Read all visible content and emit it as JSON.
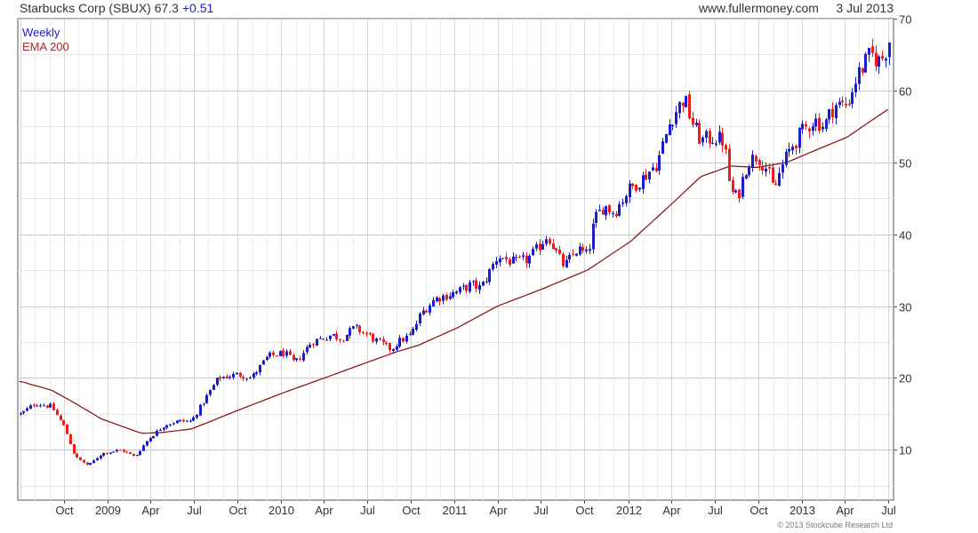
{
  "header": {
    "title": "Starbucks Corp (SBUX)",
    "price": "67.3",
    "change": "+0.51",
    "site": "www.fullermoney.com",
    "date": "3 Jul 2013"
  },
  "legend": {
    "series1": "Weekly",
    "series2": "EMA 200"
  },
  "copyright": "© 2013 Stockcube Research Ltd",
  "colors": {
    "up": "#1c1ccc",
    "down": "#ee1c1c",
    "ema": "#8b1a1a",
    "grid": "#d3d3d3"
  },
  "chart_data": {
    "type": "line",
    "title": "Starbucks Corp (SBUX)",
    "ylim": [
      3,
      70
    ],
    "yticks": [
      10,
      20,
      30,
      40,
      50,
      60,
      70
    ],
    "x_tick_labels": [
      "Oct",
      "2009",
      "Apr",
      "Jul",
      "Oct",
      "2010",
      "Apr",
      "Jul",
      "Oct",
      "2011",
      "Apr",
      "Jul",
      "Oct",
      "2012",
      "Apr",
      "Jul",
      "Oct",
      "2013",
      "Apr",
      "Jul"
    ],
    "grid": true,
    "legend_position": "top-left",
    "weekly_close_anchors": [
      [
        "2008-07-03",
        15
      ],
      [
        "2008-08-01",
        16.5
      ],
      [
        "2008-09-05",
        16
      ],
      [
        "2008-10-03",
        13
      ],
      [
        "2008-10-24",
        9
      ],
      [
        "2008-11-21",
        7.8
      ],
      [
        "2008-12-19",
        9.5
      ],
      [
        "2009-01-30",
        10
      ],
      [
        "2009-02-27",
        9
      ],
      [
        "2009-03-27",
        11.5
      ],
      [
        "2009-05-01",
        13.5
      ],
      [
        "2009-05-29",
        14
      ],
      [
        "2009-06-26",
        14
      ],
      [
        "2009-07-24",
        17
      ],
      [
        "2009-08-21",
        20
      ],
      [
        "2009-10-02",
        20.5
      ],
      [
        "2009-10-30",
        20
      ],
      [
        "2009-12-04",
        23
      ],
      [
        "2010-01-08",
        23.5
      ],
      [
        "2010-01-29",
        22
      ],
      [
        "2010-03-05",
        25
      ],
      [
        "2010-04-16",
        26
      ],
      [
        "2010-05-07",
        25.5
      ],
      [
        "2010-06-04",
        27
      ],
      [
        "2010-07-02",
        26
      ],
      [
        "2010-07-23",
        25
      ],
      [
        "2010-08-20",
        24
      ],
      [
        "2010-09-03",
        25
      ],
      [
        "2010-10-01",
        26
      ],
      [
        "2010-10-22",
        29
      ],
      [
        "2010-11-19",
        31
      ],
      [
        "2011-01-07",
        32
      ],
      [
        "2011-02-04",
        33
      ],
      [
        "2011-02-25",
        32.5
      ],
      [
        "2011-04-01",
        37
      ],
      [
        "2011-05-06",
        36
      ],
      [
        "2011-06-03",
        36.5
      ],
      [
        "2011-06-24",
        38
      ],
      [
        "2011-07-15",
        40
      ],
      [
        "2011-08-05",
        37
      ],
      [
        "2011-08-19",
        35.5
      ],
      [
        "2011-09-16",
        38
      ],
      [
        "2011-10-07",
        37
      ],
      [
        "2011-10-21",
        42
      ],
      [
        "2011-11-11",
        44
      ],
      [
        "2011-12-02",
        43
      ],
      [
        "2011-12-30",
        46
      ],
      [
        "2012-02-03",
        48
      ],
      [
        "2012-03-02",
        50
      ],
      [
        "2012-03-30",
        56
      ],
      [
        "2012-04-27",
        59
      ],
      [
        "2012-05-11",
        56
      ],
      [
        "2012-06-01",
        53
      ],
      [
        "2012-06-29",
        53.5
      ],
      [
        "2012-07-20",
        53
      ],
      [
        "2012-08-03",
        46
      ],
      [
        "2012-08-17",
        45
      ],
      [
        "2012-09-07",
        50
      ],
      [
        "2012-09-28",
        51
      ],
      [
        "2012-10-19",
        49
      ],
      [
        "2012-11-02",
        46
      ],
      [
        "2012-11-16",
        49
      ],
      [
        "2012-12-07",
        52
      ],
      [
        "2012-12-28",
        54
      ],
      [
        "2013-01-25",
        56
      ],
      [
        "2013-02-15",
        55
      ],
      [
        "2013-03-08",
        58
      ],
      [
        "2013-04-05",
        58
      ],
      [
        "2013-04-26",
        62
      ],
      [
        "2013-05-24",
        65
      ],
      [
        "2013-06-14",
        64
      ],
      [
        "2013-06-28",
        66
      ],
      [
        "2013-07-03",
        67.3
      ]
    ],
    "ema_200_anchors": [
      [
        "2008-07-03",
        19.5
      ],
      [
        "2008-09-05",
        18.3
      ],
      [
        "2008-10-24",
        16.5
      ],
      [
        "2008-12-19",
        14.3
      ],
      [
        "2009-03-13",
        12.3
      ],
      [
        "2009-04-24",
        12.4
      ],
      [
        "2009-06-26",
        12.9
      ],
      [
        "2009-08-07",
        14
      ],
      [
        "2009-10-02",
        15.5
      ],
      [
        "2010-01-08",
        18
      ],
      [
        "2010-04-02",
        20
      ],
      [
        "2010-07-02",
        22.2
      ],
      [
        "2010-09-03",
        23.7
      ],
      [
        "2010-10-15",
        24.5
      ],
      [
        "2011-01-07",
        27
      ],
      [
        "2011-04-01",
        30
      ],
      [
        "2011-07-01",
        32.3
      ],
      [
        "2011-10-07",
        35
      ],
      [
        "2012-01-06",
        39
      ],
      [
        "2012-04-06",
        44.5
      ],
      [
        "2012-06-01",
        48
      ],
      [
        "2012-08-03",
        49.5
      ],
      [
        "2012-09-28",
        49.3
      ],
      [
        "2012-11-30",
        50
      ],
      [
        "2013-01-04",
        51
      ],
      [
        "2013-04-05",
        53.5
      ],
      [
        "2013-07-03",
        57.5
      ]
    ]
  }
}
